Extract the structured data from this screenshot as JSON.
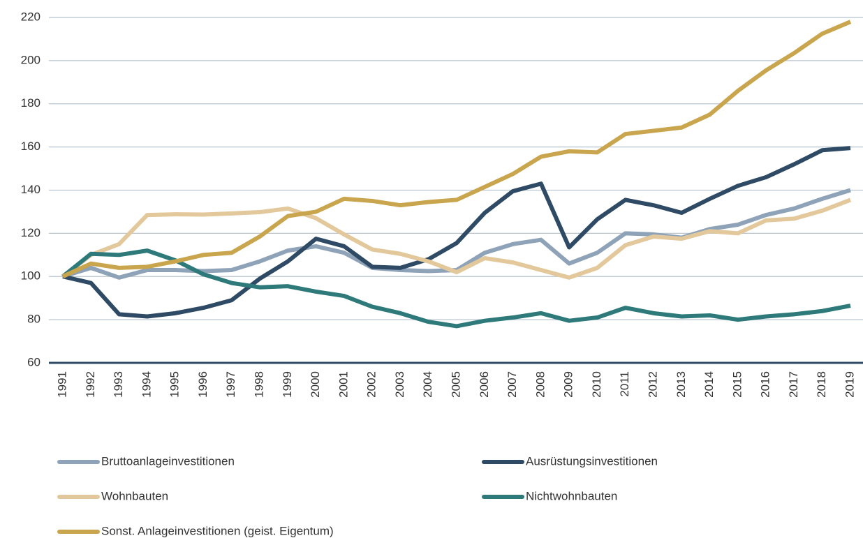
{
  "chart_data": {
    "type": "line",
    "categories": [
      "1991",
      "1992",
      "1993",
      "1994",
      "1995",
      "1996",
      "1997",
      "1998",
      "1999",
      "2000",
      "2001",
      "2002",
      "2003",
      "2004",
      "2005",
      "2006",
      "2007",
      "2008",
      "2009",
      "2010",
      "2011",
      "2012",
      "2013",
      "2014",
      "2015",
      "2016",
      "2017",
      "2018",
      "2019"
    ],
    "series": [
      {
        "name": "Bruttoanlageinvestitionen",
        "color": "#8fa3b8",
        "values": [
          100,
          104,
          99.5,
          103,
          103,
          102.5,
          103,
          107,
          112,
          114,
          111,
          104,
          103,
          102.5,
          103,
          111,
          115,
          117,
          106,
          111,
          120,
          119.5,
          118,
          122,
          124,
          128.5,
          131.5,
          136,
          140
        ]
      },
      {
        "name": "Ausrüstungsinvestitionen",
        "color": "#2e4a64",
        "values": [
          100,
          97,
          82.5,
          81.5,
          83,
          85.5,
          89,
          99,
          107,
          117.5,
          114,
          104.5,
          104,
          108,
          115.5,
          129.5,
          139.5,
          143,
          113.5,
          126.5,
          135.5,
          133,
          129.5,
          136,
          142,
          146,
          152,
          158.5,
          159.5
        ]
      },
      {
        "name": "Wohnbauten",
        "color": "#e2c89b",
        "values": [
          100,
          110,
          115,
          128.5,
          128.8,
          128.7,
          129.2,
          129.8,
          131.5,
          127,
          119.5,
          112.5,
          110.5,
          107,
          102,
          108.5,
          106.5,
          103,
          99.5,
          104,
          114.5,
          118.5,
          117.5,
          121,
          120,
          126,
          126.8,
          130.5,
          135.5
        ]
      },
      {
        "name": "Nichtwohnbauten",
        "color": "#2e7a7a",
        "values": [
          100,
          110.5,
          110,
          112,
          107.5,
          101,
          97,
          95,
          95.5,
          93,
          91,
          86,
          83,
          79,
          77,
          79.5,
          81,
          83,
          79.5,
          81,
          85.5,
          83,
          81.5,
          82,
          80,
          81.5,
          82.5,
          84,
          86.5
        ]
      },
      {
        "name": "Sonst. Anlageinvestitionen (geist. Eigentum)",
        "color": "#c9a54e",
        "values": [
          100,
          106,
          104,
          104.5,
          107,
          110,
          111,
          118.5,
          128,
          130,
          136,
          135,
          133,
          134.5,
          135.5,
          141.5,
          147.5,
          155.5,
          158,
          157.5,
          166,
          167.5,
          169,
          175,
          186,
          195.5,
          203.5,
          212.5,
          218
        ]
      }
    ],
    "ylim": [
      60,
      220
    ],
    "yticks": [
      60,
      80,
      100,
      120,
      140,
      160,
      180,
      200,
      220
    ],
    "grid": true
  }
}
